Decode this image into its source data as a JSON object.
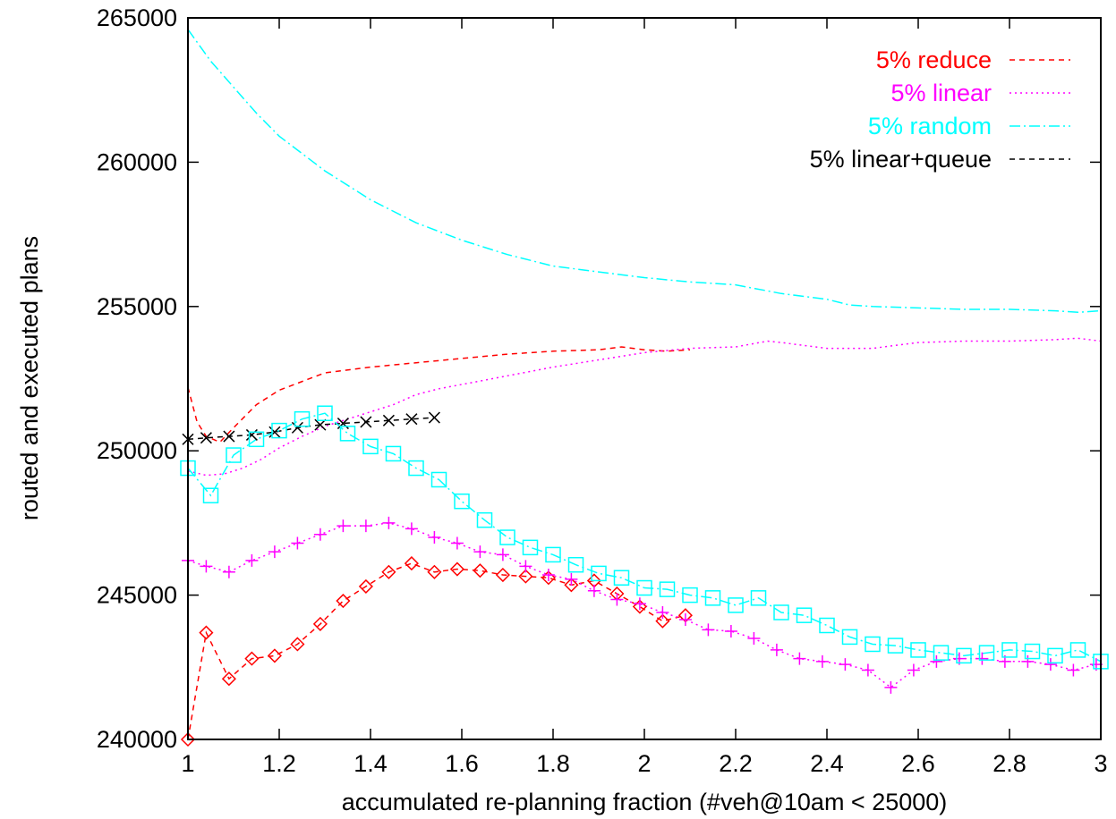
{
  "chart_data": {
    "type": "line",
    "xlabel": "accumulated re-planning fraction (#veh@10am < 25000)",
    "ylabel": "routed and executed plans",
    "xlim": [
      1,
      3
    ],
    "ylim": [
      240000,
      265000
    ],
    "x_ticks": [
      "1",
      "1.2",
      "1.4",
      "1.6",
      "1.8",
      "2",
      "2.2",
      "2.4",
      "2.6",
      "2.8",
      "3"
    ],
    "y_ticks": [
      "240000",
      "245000",
      "250000",
      "255000",
      "260000",
      "265000"
    ],
    "grid": false,
    "legend_position": "top-right",
    "series": [
      {
        "name": "5% reduce",
        "color": "#ff0000",
        "line_style": "dashed",
        "x": [
          1.0,
          1.02,
          1.04,
          1.07,
          1.1,
          1.15,
          1.2,
          1.3,
          1.4,
          1.5,
          1.6,
          1.7,
          1.8,
          1.9,
          1.95,
          2.0,
          2.05,
          2.1
        ],
        "y": [
          252200,
          251000,
          250500,
          250300,
          250800,
          251600,
          252100,
          252700,
          252900,
          253050,
          253200,
          253350,
          253450,
          253500,
          253600,
          253500,
          253450,
          253500
        ]
      },
      {
        "name": "5% linear",
        "color": "#ff00ff",
        "line_style": "dotted",
        "x": [
          1.0,
          1.04,
          1.08,
          1.12,
          1.16,
          1.2,
          1.25,
          1.3,
          1.35,
          1.4,
          1.45,
          1.5,
          1.55,
          1.6,
          1.7,
          1.8,
          1.9,
          2.0,
          2.1,
          2.2,
          2.27,
          2.3,
          2.4,
          2.45,
          2.5,
          2.6,
          2.7,
          2.8,
          2.9,
          2.95,
          3.0
        ],
        "y": [
          249300,
          249150,
          249200,
          249400,
          249700,
          250100,
          250500,
          250850,
          251100,
          251350,
          251600,
          251950,
          252150,
          252300,
          252600,
          252900,
          253150,
          253400,
          253550,
          253600,
          253800,
          253750,
          253550,
          253550,
          253550,
          253750,
          253800,
          253800,
          253850,
          253900,
          253800
        ]
      },
      {
        "name": "5% random",
        "color": "#00ffff",
        "line_style": "dash-dot",
        "x": [
          1.0,
          1.05,
          1.1,
          1.15,
          1.2,
          1.3,
          1.4,
          1.5,
          1.6,
          1.7,
          1.8,
          1.9,
          2.0,
          2.1,
          2.2,
          2.3,
          2.4,
          2.45,
          2.5,
          2.6,
          2.7,
          2.8,
          2.9,
          2.95,
          3.0
        ],
        "y": [
          264600,
          263500,
          262600,
          261700,
          260900,
          259700,
          258700,
          257900,
          257300,
          256800,
          256400,
          256200,
          256000,
          255850,
          255750,
          255450,
          255250,
          255050,
          255000,
          254950,
          254900,
          254900,
          254850,
          254800,
          254850
        ]
      },
      {
        "name": "5% linear+queue",
        "color": "#000000",
        "line_style": "dashed",
        "marker": "x",
        "x": [
          1.0,
          1.04,
          1.09,
          1.14,
          1.19,
          1.24,
          1.29,
          1.34,
          1.39,
          1.44,
          1.49,
          1.54
        ],
        "y": [
          250400,
          250450,
          250500,
          250550,
          250650,
          250800,
          250900,
          250950,
          251000,
          251050,
          251100,
          251150
        ]
      },
      {
        "name": "",
        "color": "#ff0000",
        "line_style": "dashed",
        "marker": "diamond",
        "x": [
          1.0,
          1.04,
          1.09,
          1.14,
          1.19,
          1.24,
          1.29,
          1.34,
          1.39,
          1.44,
          1.49,
          1.54,
          1.59,
          1.64,
          1.69,
          1.74,
          1.79,
          1.84,
          1.89,
          1.94,
          1.99,
          2.04,
          2.09
        ],
        "y": [
          240000,
          243700,
          242100,
          242800,
          242900,
          243300,
          244000,
          244800,
          245300,
          245800,
          246100,
          245800,
          245900,
          245850,
          245700,
          245650,
          245600,
          245350,
          245500,
          245050,
          244600,
          244100,
          244300
        ]
      },
      {
        "name": "",
        "color": "#ff00ff",
        "line_style": "dotted",
        "marker": "plus",
        "x": [
          1.0,
          1.04,
          1.09,
          1.14,
          1.19,
          1.24,
          1.29,
          1.34,
          1.39,
          1.44,
          1.49,
          1.54,
          1.59,
          1.64,
          1.69,
          1.74,
          1.79,
          1.84,
          1.89,
          1.94,
          1.99,
          2.04,
          2.09,
          2.14,
          2.19,
          2.24,
          2.29,
          2.34,
          2.39,
          2.44,
          2.49,
          2.54,
          2.59,
          2.64,
          2.69,
          2.74,
          2.79,
          2.84,
          2.89,
          2.94,
          2.99
        ],
        "y": [
          246200,
          246000,
          245800,
          246200,
          246500,
          246800,
          247100,
          247400,
          247400,
          247500,
          247300,
          247000,
          246800,
          246500,
          246400,
          246000,
          245700,
          245550,
          245150,
          244850,
          244700,
          244400,
          244150,
          243800,
          243750,
          243500,
          243100,
          242800,
          242700,
          242600,
          242400,
          241800,
          242400,
          242700,
          242800,
          242800,
          242700,
          242700,
          242600,
          242400,
          242600
        ]
      },
      {
        "name": "",
        "color": "#00ffff",
        "line_style": "dash-dot",
        "marker": "square",
        "x": [
          1.0,
          1.05,
          1.1,
          1.15,
          1.2,
          1.25,
          1.3,
          1.35,
          1.4,
          1.45,
          1.5,
          1.55,
          1.6,
          1.65,
          1.7,
          1.75,
          1.8,
          1.85,
          1.9,
          1.95,
          2.0,
          2.05,
          2.1,
          2.15,
          2.2,
          2.25,
          2.3,
          2.35,
          2.4,
          2.45,
          2.5,
          2.55,
          2.6,
          2.65,
          2.7,
          2.75,
          2.8,
          2.85,
          2.9,
          2.95,
          3.0
        ],
        "y": [
          249400,
          248450,
          249850,
          250400,
          250700,
          251100,
          251300,
          250600,
          250150,
          249900,
          249400,
          249000,
          248250,
          247600,
          247000,
          246650,
          246400,
          246050,
          245750,
          245600,
          245250,
          245200,
          245000,
          244900,
          244650,
          244900,
          244400,
          244300,
          243950,
          243550,
          243300,
          243250,
          243100,
          243000,
          242900,
          243000,
          243100,
          243050,
          242900,
          243100,
          242700
        ]
      }
    ]
  }
}
